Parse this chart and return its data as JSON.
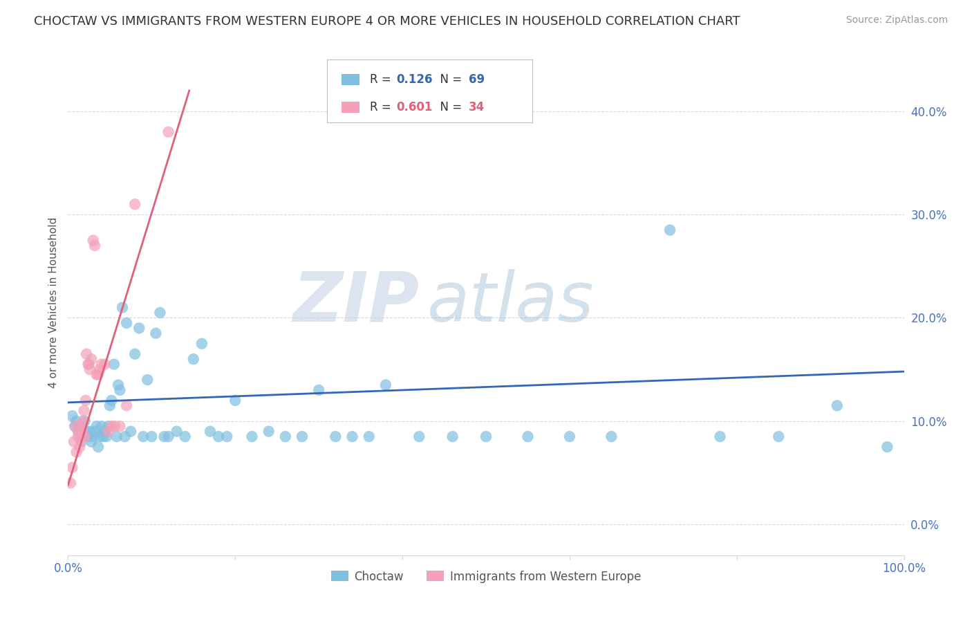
{
  "title": "CHOCTAW VS IMMIGRANTS FROM WESTERN EUROPE 4 OR MORE VEHICLES IN HOUSEHOLD CORRELATION CHART",
  "source": "Source: ZipAtlas.com",
  "ylabel": "4 or more Vehicles in Household",
  "legend_labels": [
    "Choctaw",
    "Immigrants from Western Europe"
  ],
  "legend_R": [
    0.126,
    0.601
  ],
  "legend_N": [
    69,
    34
  ],
  "blue_color": "#7fbfdf",
  "pink_color": "#f4a0b8",
  "blue_line_color": "#3366bb",
  "pink_line_color": "#e0607a",
  "watermark_zip": "ZIP",
  "watermark_atlas": "atlas",
  "xlim": [
    0.0,
    1.0
  ],
  "ylim": [
    -0.03,
    0.46
  ],
  "xticks": [
    0.0,
    0.2,
    0.4,
    0.6,
    0.8,
    1.0
  ],
  "xtick_labels": [
    "0.0%",
    "",
    "",
    "",
    "",
    "100.0%"
  ],
  "yticks": [
    0.0,
    0.1,
    0.2,
    0.3,
    0.4
  ],
  "ytick_labels": [
    "0.0%",
    "10.0%",
    "20.0%",
    "30.0%",
    "40.0%"
  ],
  "blue_scatter_x": [
    0.005,
    0.008,
    0.01,
    0.012,
    0.014,
    0.016,
    0.018,
    0.02,
    0.022,
    0.024,
    0.026,
    0.028,
    0.03,
    0.032,
    0.034,
    0.036,
    0.038,
    0.04,
    0.042,
    0.044,
    0.046,
    0.048,
    0.05,
    0.052,
    0.055,
    0.058,
    0.06,
    0.062,
    0.065,
    0.068,
    0.07,
    0.075,
    0.08,
    0.085,
    0.09,
    0.095,
    0.1,
    0.105,
    0.11,
    0.115,
    0.12,
    0.13,
    0.14,
    0.15,
    0.16,
    0.17,
    0.18,
    0.19,
    0.2,
    0.22,
    0.24,
    0.26,
    0.28,
    0.3,
    0.32,
    0.34,
    0.36,
    0.38,
    0.42,
    0.46,
    0.5,
    0.55,
    0.6,
    0.65,
    0.72,
    0.78,
    0.85,
    0.92,
    0.98
  ],
  "blue_scatter_y": [
    0.105,
    0.095,
    0.1,
    0.09,
    0.095,
    0.08,
    0.085,
    0.1,
    0.09,
    0.085,
    0.09,
    0.08,
    0.085,
    0.09,
    0.095,
    0.075,
    0.085,
    0.095,
    0.085,
    0.09,
    0.085,
    0.095,
    0.115,
    0.12,
    0.155,
    0.085,
    0.135,
    0.13,
    0.21,
    0.085,
    0.195,
    0.09,
    0.165,
    0.19,
    0.085,
    0.14,
    0.085,
    0.185,
    0.205,
    0.085,
    0.085,
    0.09,
    0.085,
    0.16,
    0.175,
    0.09,
    0.085,
    0.085,
    0.12,
    0.085,
    0.09,
    0.085,
    0.085,
    0.13,
    0.085,
    0.085,
    0.085,
    0.135,
    0.085,
    0.085,
    0.085,
    0.085,
    0.085,
    0.085,
    0.285,
    0.085,
    0.085,
    0.115,
    0.075
  ],
  "pink_scatter_x": [
    0.003,
    0.005,
    0.007,
    0.009,
    0.01,
    0.012,
    0.013,
    0.014,
    0.015,
    0.016,
    0.017,
    0.018,
    0.019,
    0.02,
    0.021,
    0.022,
    0.024,
    0.025,
    0.026,
    0.028,
    0.03,
    0.032,
    0.034,
    0.036,
    0.038,
    0.04,
    0.044,
    0.048,
    0.052,
    0.056,
    0.062,
    0.07,
    0.08,
    0.12
  ],
  "pink_scatter_y": [
    0.04,
    0.055,
    0.08,
    0.095,
    0.07,
    0.085,
    0.09,
    0.075,
    0.095,
    0.085,
    0.09,
    0.1,
    0.11,
    0.085,
    0.12,
    0.165,
    0.155,
    0.155,
    0.15,
    0.16,
    0.275,
    0.27,
    0.145,
    0.145,
    0.15,
    0.155,
    0.155,
    0.09,
    0.095,
    0.095,
    0.095,
    0.115,
    0.31,
    0.38
  ],
  "blue_line_x": [
    0.0,
    1.0
  ],
  "blue_line_y": [
    0.118,
    0.148
  ],
  "pink_line_x": [
    0.0,
    0.145
  ],
  "pink_line_y": [
    0.038,
    0.42
  ],
  "grid_color": "#d0d8e0",
  "background_color": "#ffffff",
  "title_fontsize": 13,
  "axis_label_fontsize": 11,
  "tick_fontsize": 12,
  "legend_fontsize": 12,
  "source_fontsize": 10
}
